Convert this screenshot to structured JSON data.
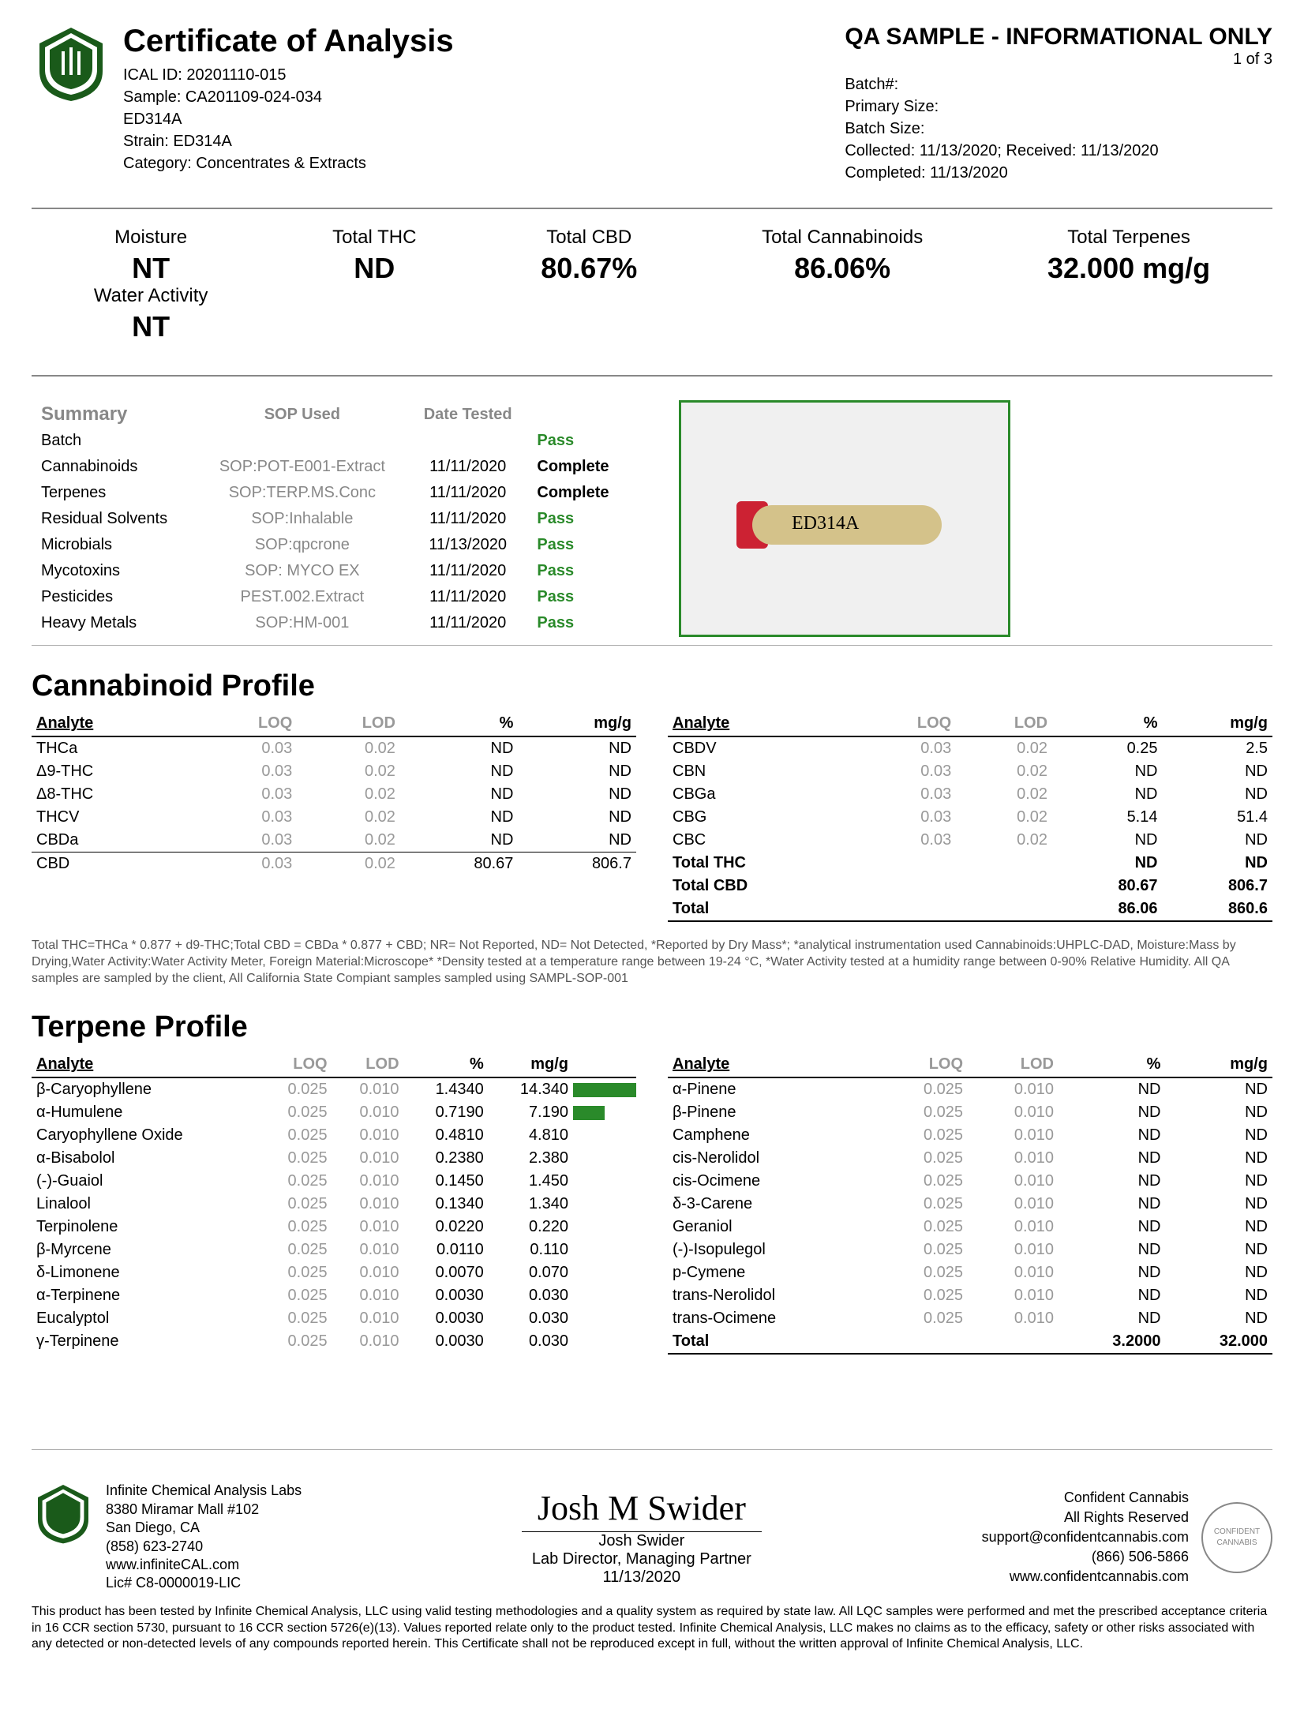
{
  "header": {
    "title": "Certificate of Analysis",
    "qa_banner": "QA SAMPLE - INFORMATIONAL ONLY",
    "page": "1 of 3",
    "ical_id": "ICAL ID: 20201110-015",
    "sample": "Sample: CA201109-024-034",
    "name": "ED314A",
    "strain": "Strain: ED314A",
    "category": "Category: Concentrates & Extracts",
    "batch_no": "Batch#:",
    "primary_size": "Primary Size:",
    "batch_size": "Batch Size:",
    "collected": "Collected: 11/13/2020; Received: 11/13/2020",
    "completed": "Completed: 11/13/2020"
  },
  "metrics": {
    "moisture_lbl": "Moisture",
    "moisture_val": "NT",
    "water_lbl": "Water Activity",
    "water_val": "NT",
    "thc_lbl": "Total THC",
    "thc_val": "ND",
    "cbd_lbl": "Total CBD",
    "cbd_val": "80.67%",
    "cann_lbl": "Total Cannabinoids",
    "cann_val": "86.06%",
    "terp_lbl": "Total Terpenes",
    "terp_val": "32.000 mg/g"
  },
  "summary": {
    "h_summary": "Summary",
    "h_sop": "SOP Used",
    "h_date": "Date Tested",
    "rows": [
      {
        "name": "Batch",
        "sop": "",
        "date": "",
        "status": "Pass",
        "cls": "pass"
      },
      {
        "name": "Cannabinoids",
        "sop": "SOP:POT-E001-Extract",
        "date": "11/11/2020",
        "status": "Complete",
        "cls": "complete"
      },
      {
        "name": "Terpenes",
        "sop": "SOP:TERP.MS.Conc",
        "date": "11/11/2020",
        "status": "Complete",
        "cls": "complete"
      },
      {
        "name": "Residual Solvents",
        "sop": "SOP:Inhalable",
        "date": "11/11/2020",
        "status": "Pass",
        "cls": "pass"
      },
      {
        "name": "Microbials",
        "sop": "SOP:qpcrone",
        "date": "11/13/2020",
        "status": "Pass",
        "cls": "pass"
      },
      {
        "name": "Mycotoxins",
        "sop": "SOP: MYCO EX",
        "date": "11/11/2020",
        "status": "Pass",
        "cls": "pass"
      },
      {
        "name": "Pesticides",
        "sop": "PEST.002.Extract",
        "date": "11/11/2020",
        "status": "Pass",
        "cls": "pass"
      },
      {
        "name": "Heavy Metals",
        "sop": "SOP:HM-001",
        "date": "11/11/2020",
        "status": "Pass",
        "cls": "pass"
      }
    ],
    "vial_label": "ED314A"
  },
  "cann": {
    "title": "Cannabinoid Profile",
    "h": {
      "analyte": "Analyte",
      "loq": "LOQ",
      "lod": "LOD",
      "pct": "%",
      "mgg": "mg/g"
    },
    "left": [
      {
        "a": "THCa",
        "loq": "0.03",
        "lod": "0.02",
        "pct": "ND",
        "mgg": "ND"
      },
      {
        "a": "Δ9-THC",
        "loq": "0.03",
        "lod": "0.02",
        "pct": "ND",
        "mgg": "ND"
      },
      {
        "a": "Δ8-THC",
        "loq": "0.03",
        "lod": "0.02",
        "pct": "ND",
        "mgg": "ND"
      },
      {
        "a": "THCV",
        "loq": "0.03",
        "lod": "0.02",
        "pct": "ND",
        "mgg": "ND"
      },
      {
        "a": "CBDa",
        "loq": "0.03",
        "lod": "0.02",
        "pct": "ND",
        "mgg": "ND"
      },
      {
        "a": "CBD",
        "loq": "0.03",
        "lod": "0.02",
        "pct": "80.67",
        "mgg": "806.7",
        "u": true
      }
    ],
    "right": [
      {
        "a": "CBDV",
        "loq": "0.03",
        "lod": "0.02",
        "pct": "0.25",
        "mgg": "2.5"
      },
      {
        "a": "CBN",
        "loq": "0.03",
        "lod": "0.02",
        "pct": "ND",
        "mgg": "ND"
      },
      {
        "a": "CBGa",
        "loq": "0.03",
        "lod": "0.02",
        "pct": "ND",
        "mgg": "ND"
      },
      {
        "a": "CBG",
        "loq": "0.03",
        "lod": "0.02",
        "pct": "5.14",
        "mgg": "51.4"
      },
      {
        "a": "CBC",
        "loq": "0.03",
        "lod": "0.02",
        "pct": "ND",
        "mgg": "ND"
      },
      {
        "a": "Total THC",
        "loq": "",
        "lod": "",
        "pct": "ND",
        "mgg": "ND",
        "bold": true
      },
      {
        "a": "Total CBD",
        "loq": "",
        "lod": "",
        "pct": "80.67",
        "mgg": "806.7",
        "bold": true
      },
      {
        "a": "Total",
        "loq": "",
        "lod": "",
        "pct": "86.06",
        "mgg": "860.6",
        "bold": true,
        "total": true
      }
    ],
    "note": "Total THC=THCa * 0.877 + d9-THC;Total CBD = CBDa * 0.877 + CBD; NR= Not Reported, ND= Not Detected, *Reported by Dry Mass*; *analytical instrumentation used Cannabinoids:UHPLC-DAD, Moisture:Mass by Drying,Water Activity:Water Activity Meter, Foreign Material:Microscope* *Density tested at a temperature range between 19-24 °C, *Water Activity tested at a humidity range between 0-90% Relative Humidity. All QA samples are sampled by the client, All California State Compiant samples sampled using SAMPL-SOP-001"
  },
  "terp": {
    "title": "Terpene Profile",
    "h": {
      "analyte": "Analyte",
      "loq": "LOQ",
      "lod": "LOD",
      "pct": "%",
      "mgg": "mg/g"
    },
    "left": [
      {
        "a": "β-Caryophyllene",
        "loq": "0.025",
        "lod": "0.010",
        "pct": "1.4340",
        "mgg": "14.340",
        "bar": 100
      },
      {
        "a": "α-Humulene",
        "loq": "0.025",
        "lod": "0.010",
        "pct": "0.7190",
        "mgg": "7.190",
        "bar": 50
      },
      {
        "a": "Caryophyllene Oxide",
        "loq": "0.025",
        "lod": "0.010",
        "pct": "0.4810",
        "mgg": "4.810"
      },
      {
        "a": "α-Bisabolol",
        "loq": "0.025",
        "lod": "0.010",
        "pct": "0.2380",
        "mgg": "2.380"
      },
      {
        "a": "(-)-Guaiol",
        "loq": "0.025",
        "lod": "0.010",
        "pct": "0.1450",
        "mgg": "1.450"
      },
      {
        "a": "Linalool",
        "loq": "0.025",
        "lod": "0.010",
        "pct": "0.1340",
        "mgg": "1.340"
      },
      {
        "a": "Terpinolene",
        "loq": "0.025",
        "lod": "0.010",
        "pct": "0.0220",
        "mgg": "0.220"
      },
      {
        "a": "β-Myrcene",
        "loq": "0.025",
        "lod": "0.010",
        "pct": "0.0110",
        "mgg": "0.110"
      },
      {
        "a": "δ-Limonene",
        "loq": "0.025",
        "lod": "0.010",
        "pct": "0.0070",
        "mgg": "0.070"
      },
      {
        "a": "α-Terpinene",
        "loq": "0.025",
        "lod": "0.010",
        "pct": "0.0030",
        "mgg": "0.030"
      },
      {
        "a": "Eucalyptol",
        "loq": "0.025",
        "lod": "0.010",
        "pct": "0.0030",
        "mgg": "0.030"
      },
      {
        "a": "γ-Terpinene",
        "loq": "0.025",
        "lod": "0.010",
        "pct": "0.0030",
        "mgg": "0.030"
      }
    ],
    "right": [
      {
        "a": "α-Pinene",
        "loq": "0.025",
        "lod": "0.010",
        "pct": "ND",
        "mgg": "ND"
      },
      {
        "a": "β-Pinene",
        "loq": "0.025",
        "lod": "0.010",
        "pct": "ND",
        "mgg": "ND"
      },
      {
        "a": "Camphene",
        "loq": "0.025",
        "lod": "0.010",
        "pct": "ND",
        "mgg": "ND"
      },
      {
        "a": "cis-Nerolidol",
        "loq": "0.025",
        "lod": "0.010",
        "pct": "ND",
        "mgg": "ND"
      },
      {
        "a": "cis-Ocimene",
        "loq": "0.025",
        "lod": "0.010",
        "pct": "ND",
        "mgg": "ND"
      },
      {
        "a": "δ-3-Carene",
        "loq": "0.025",
        "lod": "0.010",
        "pct": "ND",
        "mgg": "ND"
      },
      {
        "a": "Geraniol",
        "loq": "0.025",
        "lod": "0.010",
        "pct": "ND",
        "mgg": "ND"
      },
      {
        "a": "(-)-Isopulegol",
        "loq": "0.025",
        "lod": "0.010",
        "pct": "ND",
        "mgg": "ND"
      },
      {
        "a": "p-Cymene",
        "loq": "0.025",
        "lod": "0.010",
        "pct": "ND",
        "mgg": "ND"
      },
      {
        "a": "trans-Nerolidol",
        "loq": "0.025",
        "lod": "0.010",
        "pct": "ND",
        "mgg": "ND"
      },
      {
        "a": "trans-Ocimene",
        "loq": "0.025",
        "lod": "0.010",
        "pct": "ND",
        "mgg": "ND"
      },
      {
        "a": "Total",
        "loq": "",
        "lod": "",
        "pct": "3.2000",
        "mgg": "32.000",
        "bold": true,
        "total": true
      }
    ]
  },
  "footer": {
    "lab_name": "Infinite Chemical Analysis Labs",
    "addr1": "8380 Miramar Mall #102",
    "addr2": "San Diego, CA",
    "phone": "(858) 623-2740",
    "web": "www.infiniteCAL.com",
    "lic": "Lic# C8-0000019-LIC",
    "sig": "Josh M Swider",
    "sig_name": "Josh Swider",
    "sig_title": "Lab Director, Managing Partner",
    "sig_date": "11/13/2020",
    "cc_name": "Confident Cannabis",
    "cc_rights": "All Rights Reserved",
    "cc_email": "support@confidentcannabis.com",
    "cc_phone": "(866) 506-5866",
    "cc_web": "www.confidentcannabis.com",
    "disclaimer": "This product has been tested by Infinite Chemical Analysis, LLC using valid testing methodologies and a quality system as required by state law. All LQC samples were performed and met the prescribed acceptance criteria in 16 CCR section 5730, pursuant to 16 CCR section 5726(e)(13). Values reported relate only to the product tested. Infinite Chemical Analysis, LLC makes no claims as to the efficacy, safety or other risks associated with any detected or non-detected levels of any compounds reported herein. This Certificate shall not be reproduced except in full, without the written approval of Infinite Chemical Analysis, LLC."
  },
  "colors": {
    "pass": "#2a8a2a",
    "grey": "#999999",
    "border": "#888888"
  }
}
